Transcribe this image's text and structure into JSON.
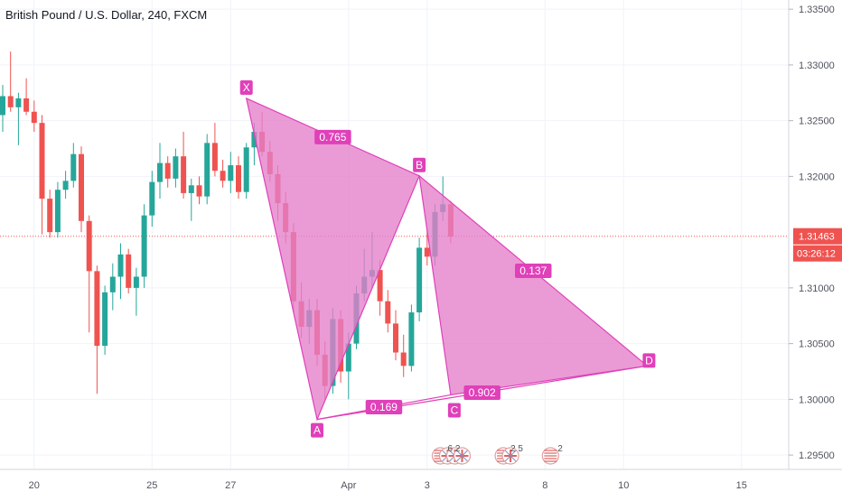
{
  "header": {
    "title": "British Pound / U.S. Dollar, 240, FXCM"
  },
  "colors": {
    "bull": "#26a69a",
    "bear": "#ef5350",
    "pattern": "#e040b9",
    "pattern_fill": "#e47fc9",
    "price_line": "#ef5350",
    "grid": "#f0f3fa"
  },
  "chart_data": {
    "type": "candlestick",
    "title": "British Pound / U.S. Dollar, 240, FXCM",
    "ylim": [
      1.2942,
      1.3355
    ],
    "yticks": [
      "1.33500",
      "1.33000",
      "1.32500",
      "1.32000",
      "1.31000",
      "1.30500",
      "1.30000",
      "1.29500"
    ],
    "xticks": [
      {
        "label": "20",
        "bar": 4
      },
      {
        "label": "25",
        "bar": 19
      },
      {
        "label": "27",
        "bar": 29
      },
      {
        "label": "Apr",
        "bar": 44
      },
      {
        "label": "3",
        "bar": 54
      },
      {
        "label": "8",
        "bar": 69
      },
      {
        "label": "10",
        "bar": 79
      },
      {
        "label": "15",
        "bar": 94
      }
    ],
    "last_price": {
      "value": 1.31463,
      "label": "1.31463",
      "countdown": "03:26:12"
    },
    "candles": [
      [
        1.3255,
        1.3282,
        1.324,
        1.3272
      ],
      [
        1.3272,
        1.3312,
        1.3258,
        1.3262
      ],
      [
        1.3262,
        1.3275,
        1.3228,
        1.327
      ],
      [
        1.327,
        1.3288,
        1.3255,
        1.3258
      ],
      [
        1.3258,
        1.3268,
        1.324,
        1.3248
      ],
      [
        1.3248,
        1.3255,
        1.3148,
        1.318
      ],
      [
        1.318,
        1.3188,
        1.3145,
        1.315
      ],
      [
        1.315,
        1.3195,
        1.3145,
        1.3188
      ],
      [
        1.3188,
        1.3205,
        1.318,
        1.3196
      ],
      [
        1.3196,
        1.323,
        1.319,
        1.322
      ],
      [
        1.322,
        1.3227,
        1.315,
        1.316
      ],
      [
        1.316,
        1.3165,
        1.306,
        1.3115
      ],
      [
        1.3115,
        1.312,
        1.3005,
        1.3048
      ],
      [
        1.3048,
        1.3102,
        1.304,
        1.3096
      ],
      [
        1.3096,
        1.3122,
        1.308,
        1.311
      ],
      [
        1.311,
        1.314,
        1.309,
        1.313
      ],
      [
        1.313,
        1.3135,
        1.3095,
        1.31
      ],
      [
        1.31,
        1.3118,
        1.3075,
        1.311
      ],
      [
        1.311,
        1.3175,
        1.31,
        1.3165
      ],
      [
        1.3165,
        1.3205,
        1.3155,
        1.3195
      ],
      [
        1.3195,
        1.323,
        1.318,
        1.3212
      ],
      [
        1.3212,
        1.3218,
        1.319,
        1.3198
      ],
      [
        1.3198,
        1.3225,
        1.319,
        1.3218
      ],
      [
        1.3218,
        1.324,
        1.318,
        1.3185
      ],
      [
        1.3185,
        1.3198,
        1.316,
        1.3192
      ],
      [
        1.3192,
        1.32,
        1.3175,
        1.3182
      ],
      [
        1.3182,
        1.3238,
        1.3175,
        1.323
      ],
      [
        1.323,
        1.3248,
        1.32,
        1.3205
      ],
      [
        1.3205,
        1.3215,
        1.319,
        1.3196
      ],
      [
        1.3196,
        1.3222,
        1.3185,
        1.321
      ],
      [
        1.321,
        1.3218,
        1.318,
        1.3186
      ],
      [
        1.3186,
        1.323,
        1.318,
        1.3226
      ],
      [
        1.3226,
        1.3248,
        1.321,
        1.324
      ],
      [
        1.324,
        1.3258,
        1.3218,
        1.3222
      ],
      [
        1.3222,
        1.3232,
        1.3195,
        1.3202
      ],
      [
        1.3202,
        1.321,
        1.316,
        1.3176
      ],
      [
        1.3176,
        1.3186,
        1.314,
        1.315
      ],
      [
        1.315,
        1.3158,
        1.3078,
        1.3088
      ],
      [
        1.3088,
        1.3105,
        1.3055,
        1.3065
      ],
      [
        1.3065,
        1.309,
        1.305,
        1.308
      ],
      [
        1.308,
        1.309,
        1.303,
        1.304
      ],
      [
        1.304,
        1.3052,
        1.3,
        1.3012
      ],
      [
        1.3012,
        1.3082,
        1.3005,
        1.3072
      ],
      [
        1.3072,
        1.308,
        1.3015,
        1.3025
      ],
      [
        1.3025,
        1.306,
        1.3,
        1.305
      ],
      [
        1.305,
        1.3102,
        1.3045,
        1.3095
      ],
      [
        1.3095,
        1.3135,
        1.3088,
        1.311
      ],
      [
        1.311,
        1.315,
        1.31,
        1.3116
      ],
      [
        1.3116,
        1.3125,
        1.3075,
        1.3088
      ],
      [
        1.3088,
        1.3098,
        1.306,
        1.3068
      ],
      [
        1.3068,
        1.308,
        1.3035,
        1.3042
      ],
      [
        1.3042,
        1.3058,
        1.302,
        1.303
      ],
      [
        1.303,
        1.3085,
        1.3025,
        1.3078
      ],
      [
        1.3078,
        1.3145,
        1.307,
        1.3136
      ],
      [
        1.3136,
        1.3152,
        1.312,
        1.3128
      ],
      [
        1.3128,
        1.3175,
        1.312,
        1.3168
      ],
      [
        1.3168,
        1.32,
        1.316,
        1.3175
      ],
      [
        1.3175,
        1.3178,
        1.314,
        1.3146
      ]
    ],
    "harmonic_pattern": {
      "points": [
        {
          "label": "X",
          "bar": 31,
          "price": 1.327
        },
        {
          "label": "A",
          "bar": 40,
          "price": 1.2982
        },
        {
          "label": "B",
          "bar": 53,
          "price": 1.32005
        },
        {
          "label": "C",
          "bar": 57,
          "price": 1.3004
        },
        {
          "label": "D",
          "bar": 82,
          "price": 1.303
        }
      ],
      "ratios": [
        {
          "label": "0.765",
          "from": "X",
          "to": "B"
        },
        {
          "label": "0.169",
          "from": "A",
          "to": "C"
        },
        {
          "label": "0.137",
          "from": "B",
          "to": "D"
        },
        {
          "label": "0.902",
          "from": "A",
          "to": "D"
        }
      ]
    },
    "events": [
      {
        "label": "6 2",
        "bar": 55,
        "flags": [
          "us",
          "gb",
          "gb",
          "gb"
        ]
      },
      {
        "label": "2 5",
        "bar": 63,
        "flags": [
          "us",
          "gb"
        ]
      },
      {
        "label": "2",
        "bar": 69,
        "flags": [
          "us"
        ]
      }
    ]
  }
}
